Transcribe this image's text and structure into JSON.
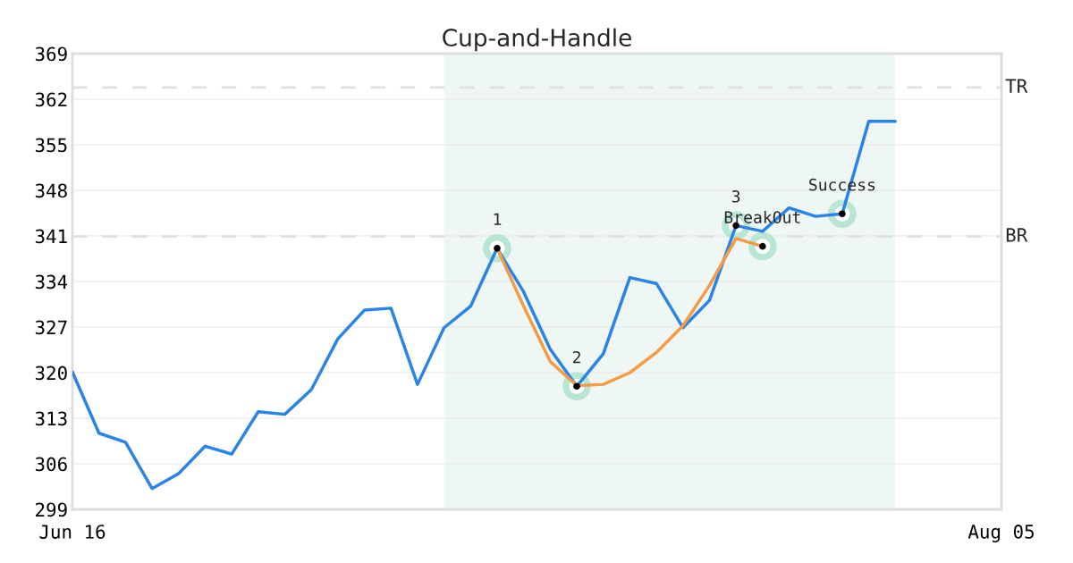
{
  "chart_data": {
    "type": "line",
    "title": "Cup-and-Handle",
    "categories": [
      "Jun 16",
      null,
      null,
      null,
      null,
      null,
      null,
      null,
      null,
      null,
      null,
      null,
      null,
      null,
      null,
      null,
      null,
      null,
      null,
      null,
      null,
      null,
      null,
      null,
      null,
      null,
      null,
      null,
      null,
      null,
      null,
      null,
      null,
      null,
      null,
      "Aug 05"
    ],
    "ylim": [
      299,
      369
    ],
    "yticks": [
      299,
      306,
      313,
      320,
      327,
      334,
      341,
      348,
      355,
      362,
      369
    ],
    "grid": "y",
    "series": [
      {
        "color": "#2a84e8",
        "values": [
          320.1,
          310.7,
          309.3,
          302.2,
          304.5,
          308.7,
          307.5,
          314.0,
          313.6,
          317.4,
          325.2,
          329.6,
          329.9,
          318.2,
          326.9,
          330.2,
          339.1,
          332.4,
          323.6,
          317.9,
          322.9,
          334.6,
          333.7,
          326.9,
          331.1,
          342.6,
          341.7,
          345.3,
          344.0,
          344.4,
          358.6,
          358.6,
          null,
          null,
          null,
          null
        ]
      },
      {
        "color": "#f59a45",
        "values": [
          null,
          null,
          null,
          null,
          null,
          null,
          null,
          null,
          null,
          null,
          null,
          null,
          null,
          null,
          null,
          null,
          339.1,
          330.2,
          321.7,
          318.0,
          318.2,
          320.0,
          323.1,
          327.2,
          333.4,
          340.6,
          339.4,
          null,
          null,
          null,
          null,
          null,
          null,
          null,
          null,
          null
        ]
      },
      {
        "type": "scatter",
        "color": "#000000",
        "marker": "circle",
        "values": [
          null,
          null,
          null,
          null,
          null,
          null,
          null,
          null,
          null,
          null,
          null,
          null,
          null,
          null,
          null,
          null,
          339.1,
          null,
          null,
          317.9,
          null,
          null,
          null,
          null,
          null,
          342.6,
          339.4,
          null,
          null,
          344.4,
          null,
          null,
          null,
          null,
          null,
          null
        ]
      }
    ],
    "ref_lines": [
      {
        "axis": "y",
        "value": 363.8,
        "label": "TR",
        "color": "#e0e0e0",
        "line_style": "dashed"
      },
      {
        "axis": "y",
        "value": 340.9,
        "label": "BR",
        "color": "#e0e0e0",
        "line_style": "dashed"
      }
    ],
    "annotations": [
      "1",
      "2",
      "3",
      "BreakOut",
      "Success"
    ]
  }
}
